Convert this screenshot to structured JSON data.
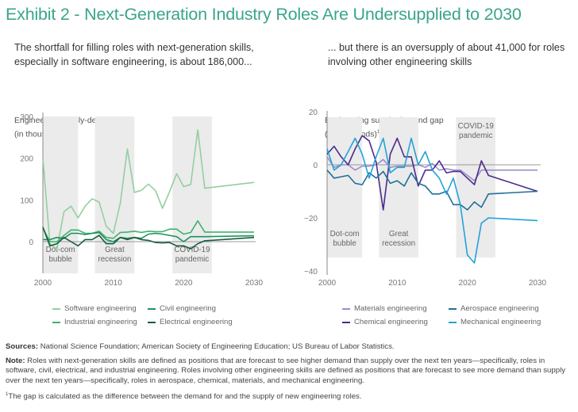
{
  "title": "Exhibit 2 - Next-Generation Industry Roles Are Undersupplied to 2030",
  "left_subtitle": "The shortfall for filling roles with next-generation skills, especially in software engineering, is about 186,000...",
  "right_subtitle": "... but there is an oversupply of about 41,000 for roles involving other engineering skills",
  "footer": {
    "sources_label": "Sources:",
    "sources_text": " National Science Foundation; American Society of Engineering Education; US Bureau of Labor Statistics.",
    "note_label": "Note:",
    "note_text": " Roles with next-generation skills are defined as positions that are forecast to see higher demand than supply over the next ten years—specifically, roles in software, civil, electrical, and industrial engineering. Roles involving other engineering skills are defined as positions that are forecast to see more demand than supply over the next ten years—specifically, roles in aerospace, chemical, materials, and mechanical engineering.",
    "footnote_mark": "1",
    "footnote_text": "The gap is calculated as the difference between the demand for and the supply of new engineering roles."
  },
  "chart_data": [
    {
      "type": "line",
      "title": "The shortfall for filling roles with next-generation skills, especially in software engineering, is about 186,000...",
      "ylabel_line1": "Engineering supply-demand gap",
      "ylabel_line2": "(in thousands)",
      "ylabel_footnote": "1",
      "xlabel": "",
      "xlim": [
        2000,
        2030
      ],
      "ylim": [
        -75,
        300
      ],
      "xticks": [
        2000,
        2010,
        2020,
        2030
      ],
      "yticks": [
        0,
        100,
        200,
        300
      ],
      "grid": false,
      "legend_position": "bottom",
      "bands": [
        {
          "label_line1": "Dot-com",
          "label_line2": "bubble",
          "start": 2000,
          "end": 2005
        },
        {
          "label_line1": "Great",
          "label_line2": "recession",
          "start": 2007.4,
          "end": 2013
        },
        {
          "label_line1": "COVID-19",
          "label_line2": "pandemic",
          "start": 2018.4,
          "end": 2024
        }
      ],
      "x": [
        2000,
        2001,
        2002,
        2003,
        2004,
        2005,
        2006,
        2007,
        2008,
        2009,
        2010,
        2011,
        2012,
        2013,
        2014,
        2015,
        2016,
        2017,
        2018,
        2019,
        2020,
        2021,
        2022,
        2023,
        2030
      ],
      "series": [
        {
          "name": "Software engineering",
          "color": "#93cf9f",
          "values": [
            200,
            -5,
            -18,
            72,
            85,
            57,
            85,
            103,
            95,
            37,
            20,
            92,
            222,
            118,
            123,
            138,
            122,
            80,
            120,
            163,
            132,
            137,
            268,
            128,
            142
          ]
        },
        {
          "name": "Industrial engineering",
          "color": "#3fb26e",
          "values": [
            32,
            0,
            0,
            15,
            28,
            28,
            20,
            20,
            25,
            10,
            8,
            22,
            23,
            25,
            22,
            25,
            24,
            24,
            30,
            30,
            18,
            22,
            50,
            23,
            23
          ]
        },
        {
          "name": "Civil engineering",
          "color": "#1d9262",
          "values": [
            5,
            5,
            10,
            8,
            20,
            20,
            17,
            20,
            22,
            5,
            0,
            10,
            8,
            10,
            8,
            18,
            20,
            18,
            15,
            12,
            0,
            12,
            12,
            12,
            14
          ]
        },
        {
          "name": "Electrical engineering",
          "color": "#1a5c3c",
          "values": [
            35,
            -10,
            -5,
            10,
            0,
            -10,
            5,
            5,
            15,
            -5,
            -5,
            10,
            5,
            10,
            5,
            3,
            -2,
            -3,
            -2,
            -10,
            -10,
            -17,
            -5,
            2,
            10
          ]
        }
      ]
    },
    {
      "type": "line",
      "title": "... but there is an oversupply of about 41,000 for roles involving other engineering skills",
      "ylabel_line1": "Engineering supply-demand gap",
      "ylabel_line2": "(in thousands)",
      "ylabel_footnote": "1",
      "xlabel": "",
      "xlim": [
        2000,
        2030
      ],
      "ylim": [
        -40,
        20
      ],
      "xticks": [
        2000,
        2010,
        2020,
        2030
      ],
      "yticks": [
        20,
        0,
        -20,
        -40
      ],
      "grid": false,
      "legend_position": "bottom",
      "bands": [
        {
          "label_line1": "Dot-com",
          "label_line2": "bubble",
          "start": 2000,
          "end": 2005
        },
        {
          "label_line1": "Great",
          "label_line2": "recession",
          "start": 2007.4,
          "end": 2013
        },
        {
          "label_line1": "COVID-19",
          "label_line2": "pandemic",
          "start": 2018.4,
          "end": 2024
        }
      ],
      "x": [
        2000,
        2001,
        2002,
        2003,
        2004,
        2005,
        2006,
        2007,
        2008,
        2009,
        2010,
        2011,
        2012,
        2013,
        2014,
        2015,
        2016,
        2017,
        2018,
        2019,
        2020,
        2021,
        2022,
        2023,
        2030
      ],
      "series": [
        {
          "name": "Materials engineering",
          "color": "#9c8fce",
          "values": [
            3,
            -1,
            0,
            0,
            -2,
            -0.5,
            -0.5,
            0,
            2,
            -1,
            -0.5,
            -0.5,
            -0.5,
            0,
            -1,
            0.5,
            -2,
            -1.5,
            -2,
            -2,
            -4,
            -6,
            -2,
            -2,
            -2
          ]
        },
        {
          "name": "Chemical engineering",
          "color": "#4b2a8c",
          "values": [
            4,
            7,
            3,
            0,
            6,
            11,
            9,
            1,
            -17,
            4,
            10,
            3,
            3,
            -8,
            -2,
            -2,
            1.5,
            -3,
            -2.5,
            -2.5,
            -5,
            -7.5,
            1.5,
            -4,
            -10
          ]
        },
        {
          "name": "Aerospace engineering",
          "color": "#1f6f9a",
          "values": [
            -2,
            -5,
            -4.5,
            -4,
            -7,
            -7.5,
            -3,
            -5,
            -2.5,
            -7,
            -6,
            -8,
            -3,
            -7,
            -8,
            -11,
            -11,
            -10,
            -15,
            -15,
            -17,
            -14,
            -16,
            -11,
            -10
          ]
        },
        {
          "name": "Mechanical engineering",
          "color": "#21a3d6",
          "values": [
            6,
            -2,
            0,
            5,
            10,
            4,
            -5,
            3,
            10,
            -3,
            -1,
            -1,
            10,
            0,
            5,
            -2,
            -5,
            -11,
            -5,
            -15,
            -34,
            -37,
            -22,
            -20,
            -21
          ]
        }
      ]
    }
  ]
}
